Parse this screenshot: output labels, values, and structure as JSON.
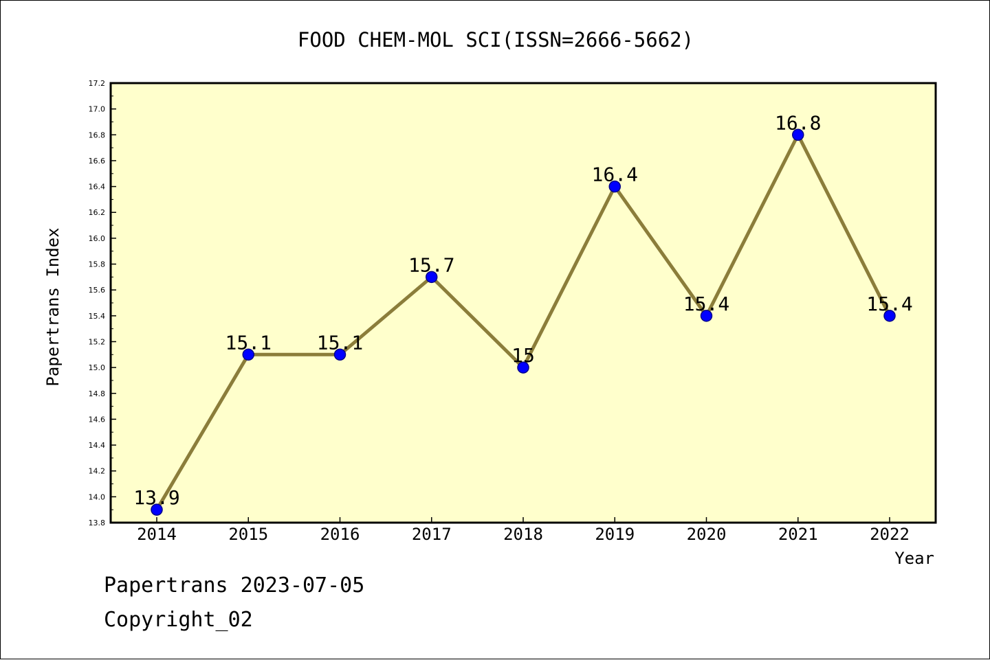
{
  "colors": {
    "plot_background": "#ffffcc",
    "line": "#8b7d3a",
    "marker": "#0000ff",
    "marker_edge": "#00008b",
    "axis": "#000000"
  },
  "chart_data": {
    "type": "line",
    "title": "FOOD CHEM-MOL SCI(ISSN=2666-5662)",
    "xlabel": "Year",
    "ylabel": "Papertrans Index",
    "categories": [
      "2014",
      "2015",
      "2016",
      "2017",
      "2018",
      "2019",
      "2020",
      "2021",
      "2022"
    ],
    "series": [
      {
        "values": [
          13.9,
          15.1,
          15.1,
          15.7,
          15.0,
          16.4,
          15.4,
          16.8,
          15.4
        ],
        "labels": [
          "13.9",
          "15.1",
          "15.1",
          "15.7",
          "15",
          "16.4",
          "15.4",
          "16.8",
          "15.4"
        ]
      }
    ],
    "ylim": [
      13.8,
      17.2
    ],
    "yticks": [
      "13.8",
      "14.0",
      "14.2",
      "14.4",
      "14.6",
      "14.8",
      "15.0",
      "15.2",
      "15.4",
      "15.6",
      "15.8",
      "16.0",
      "16.2",
      "16.4",
      "16.6",
      "16.8",
      "17.0",
      "17.2"
    ],
    "grid": false,
    "legend": "none"
  },
  "footer": {
    "date_line": "Papertrans 2023-07-05",
    "copyright_line": "Copyright_02"
  }
}
